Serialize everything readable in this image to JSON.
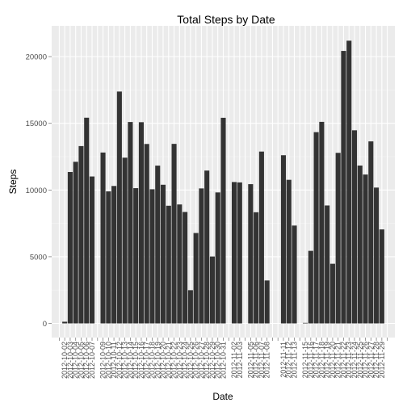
{
  "chart_data": {
    "type": "bar",
    "title": "Total Steps by Date",
    "xlabel": "Date",
    "ylabel": "Steps",
    "ylim": [
      0,
      22000
    ],
    "yticks": [
      0,
      5000,
      10000,
      15000,
      20000
    ],
    "grid": true,
    "colors": {
      "panel": "#ebebeb",
      "grid_major": "#ffffff",
      "grid_minor": "#f5f5f5",
      "bar": "#333333",
      "tick_text": "#4d4d4d"
    },
    "categories": [
      "2012-10-01",
      "2012-10-02",
      "2012-10-03",
      "2012-10-04",
      "2012-10-05",
      "2012-10-06",
      "2012-10-07",
      "2012-10-08",
      "2012-10-09",
      "2012-10-10",
      "2012-10-11",
      "2012-10-12",
      "2012-10-13",
      "2012-10-14",
      "2012-10-15",
      "2012-10-16",
      "2012-10-17",
      "2012-10-18",
      "2012-10-19",
      "2012-10-20",
      "2012-10-21",
      "2012-10-22",
      "2012-10-23",
      "2012-10-24",
      "2012-10-25",
      "2012-10-26",
      "2012-10-27",
      "2012-10-28",
      "2012-10-29",
      "2012-10-30",
      "2012-10-31",
      "2012-11-01",
      "2012-11-02",
      "2012-11-03",
      "2012-11-04",
      "2012-11-05",
      "2012-11-06",
      "2012-11-07",
      "2012-11-08",
      "2012-11-09",
      "2012-11-10",
      "2012-11-11",
      "2012-11-12",
      "2012-11-13",
      "2012-11-14",
      "2012-11-15",
      "2012-11-16",
      "2012-11-17",
      "2012-11-18",
      "2012-11-19",
      "2012-11-20",
      "2012-11-21",
      "2012-11-22",
      "2012-11-23",
      "2012-11-24",
      "2012-11-25",
      "2012-11-26",
      "2012-11-27",
      "2012-11-28",
      "2012-11-29",
      "2012-11-30"
    ],
    "values": [
      null,
      126,
      11352,
      12116,
      13294,
      15420,
      11015,
      null,
      12811,
      9900,
      10304,
      17382,
      12426,
      15098,
      10139,
      15084,
      13452,
      10056,
      11829,
      10395,
      8821,
      13460,
      8918,
      8355,
      2492,
      6778,
      10119,
      11458,
      5018,
      9819,
      15414,
      null,
      10600,
      10571,
      null,
      10439,
      8334,
      12883,
      3219,
      null,
      null,
      12608,
      10765,
      7336,
      null,
      41,
      5441,
      14339,
      15110,
      8841,
      4472,
      12787,
      20427,
      21194,
      14478,
      11834,
      11162,
      13646,
      10183,
      7047,
      null
    ],
    "xtick_labels": [
      "2012-10-02",
      "2012-10-03",
      "2012-10-04",
      "2012-10-05",
      "2012-10-06",
      "2012-10-07",
      "2012-10-09",
      "2012-10-10",
      "2012-10-11",
      "2012-10-12",
      "2012-10-13",
      "2012-10-14",
      "2012-10-15",
      "2012-10-16",
      "2012-10-17",
      "2012-10-18",
      "2012-10-19",
      "2012-10-20",
      "2012-10-21",
      "2012-10-22",
      "2012-10-23",
      "2012-10-24",
      "2012-10-25",
      "2012-10-26",
      "2012-10-27",
      "2012-10-28",
      "2012-10-29",
      "2012-10-30",
      "2012-10-31",
      "2012-11-02",
      "2012-11-03",
      "2012-11-05",
      "2012-11-06",
      "2012-11-07",
      "2012-11-08",
      "2012-11-11",
      "2012-11-12",
      "2012-11-13",
      "2012-11-15",
      "2012-11-16",
      "2012-11-17",
      "2012-11-18",
      "2012-11-19",
      "2012-11-20",
      "2012-11-21",
      "2012-11-22",
      "2012-11-23",
      "2012-11-24",
      "2012-11-25",
      "2012-11-26",
      "2012-11-27",
      "2012-11-28",
      "2012-11-29"
    ]
  }
}
